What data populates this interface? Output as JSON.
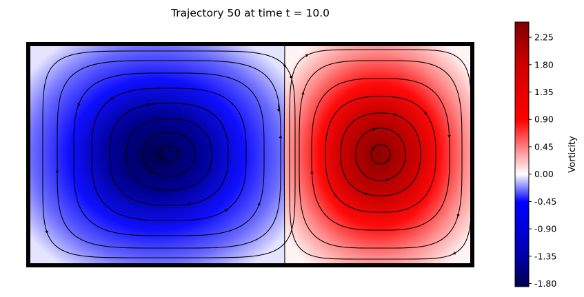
{
  "chart_data": {
    "type": "heatmap",
    "title": "Trajectory 50 at time t = 10.0",
    "xlabel": "",
    "ylabel": "",
    "axes_visible": false,
    "grid": false,
    "field": "vorticity",
    "cells": [
      {
        "label": "left vortex",
        "sign": "negative",
        "peak_value": -1.8,
        "rotation": "counter-clockwise"
      },
      {
        "label": "right vortex",
        "sign": "positive",
        "peak_value": 2.4,
        "rotation": "clockwise"
      }
    ],
    "overlay": "streamlines with arrows",
    "colormap": {
      "name": "seismic",
      "colors": [
        "#00004c",
        "#0000ff",
        "#ffffff",
        "#ff0000",
        "#800000"
      ],
      "center_value": 0.0
    },
    "colorbar": {
      "label": "Vorticity",
      "range": [
        -1.85,
        2.5
      ],
      "placement": "right",
      "ticks": [
        "-1.80",
        "-1.35",
        "-0.90",
        "-0.45",
        "0.00",
        "0.45",
        "0.90",
        "1.35",
        "1.80",
        "2.25"
      ]
    }
  }
}
